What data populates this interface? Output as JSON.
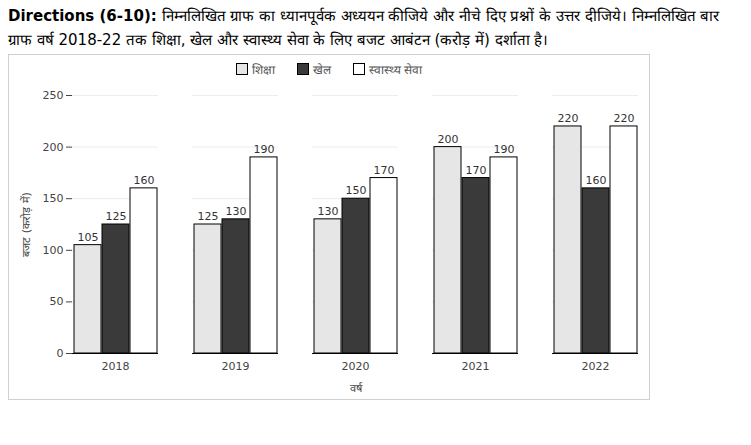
{
  "chart_data": {
    "type": "bar",
    "title": "Directions (6-10):",
    "subtitle": "निम्नलिखित ग्राफ का ध्यानपूर्वक अध्ययन कीजिये और नीचे दिए प्रश्नों के उत्तर दीजिये। निम्नलिखित बार ग्राफ वर्ष 2018-22 तक शिक्षा, खेल और स्वास्थ्य सेवा के लिए बजट आबंटन (करोड़ में) दर्शाता है।",
    "x_label": "वर्ष",
    "y_label": "बजट (करोड़ में)",
    "categories": [
      "2018",
      "2019",
      "2020",
      "2021",
      "2022"
    ],
    "series": [
      {
        "name": "शिक्षा",
        "color": "#e6e6e6",
        "values": [
          105,
          125,
          130,
          200,
          220
        ]
      },
      {
        "name": "खेल",
        "color": "#3a3a3a",
        "values": [
          125,
          130,
          150,
          170,
          160
        ]
      },
      {
        "name": "स्वास्थ्य सेवा",
        "color": "#ffffff",
        "values": [
          160,
          190,
          170,
          190,
          220
        ]
      }
    ],
    "ylim": [
      0,
      250
    ],
    "yticks": [
      0,
      50,
      100,
      150,
      200,
      250
    ],
    "grid": true,
    "legend": "top",
    "data_labels": true
  }
}
